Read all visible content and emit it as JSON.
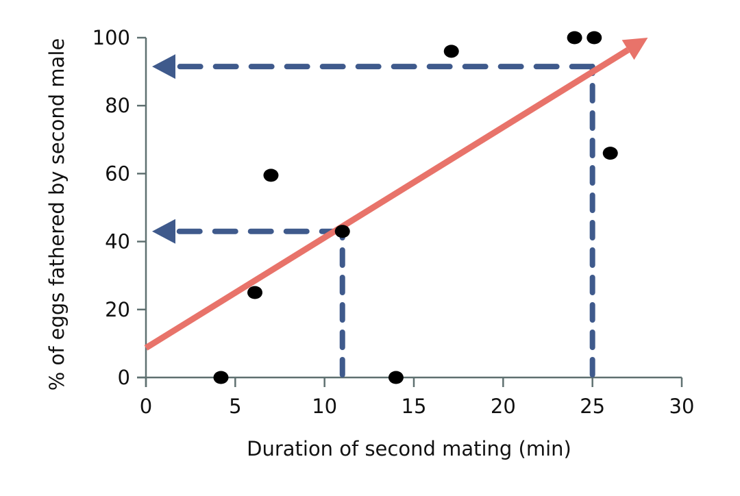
{
  "chart_data": {
    "type": "scatter",
    "title": "",
    "xlabel": "Duration of second mating (min)",
    "ylabel": "% of eggs fathered by second male",
    "xlim": [
      0,
      30
    ],
    "ylim": [
      0,
      100
    ],
    "xticks": [
      0,
      5,
      10,
      15,
      20,
      25,
      30
    ],
    "yticks": [
      0,
      20,
      40,
      60,
      80,
      100
    ],
    "grid": false,
    "points": [
      {
        "x": 4.2,
        "y": 0
      },
      {
        "x": 6.1,
        "y": 25
      },
      {
        "x": 7.0,
        "y": 59.5
      },
      {
        "x": 11.0,
        "y": 43
      },
      {
        "x": 14.0,
        "y": 0
      },
      {
        "x": 17.1,
        "y": 96
      },
      {
        "x": 24.0,
        "y": 100
      },
      {
        "x": 25.1,
        "y": 100
      },
      {
        "x": 26.0,
        "y": 66
      }
    ],
    "trend_line": {
      "x0": 0,
      "y0": 8.7,
      "x1": 28.1,
      "y1": 100
    },
    "readouts": [
      {
        "x": 11,
        "y": 43
      },
      {
        "x": 25,
        "y": 91.5
      }
    ],
    "colors": {
      "points": "#000000",
      "trend": "#e8736a",
      "readout": "#3f5a8c",
      "axis": "#5f7070"
    }
  }
}
